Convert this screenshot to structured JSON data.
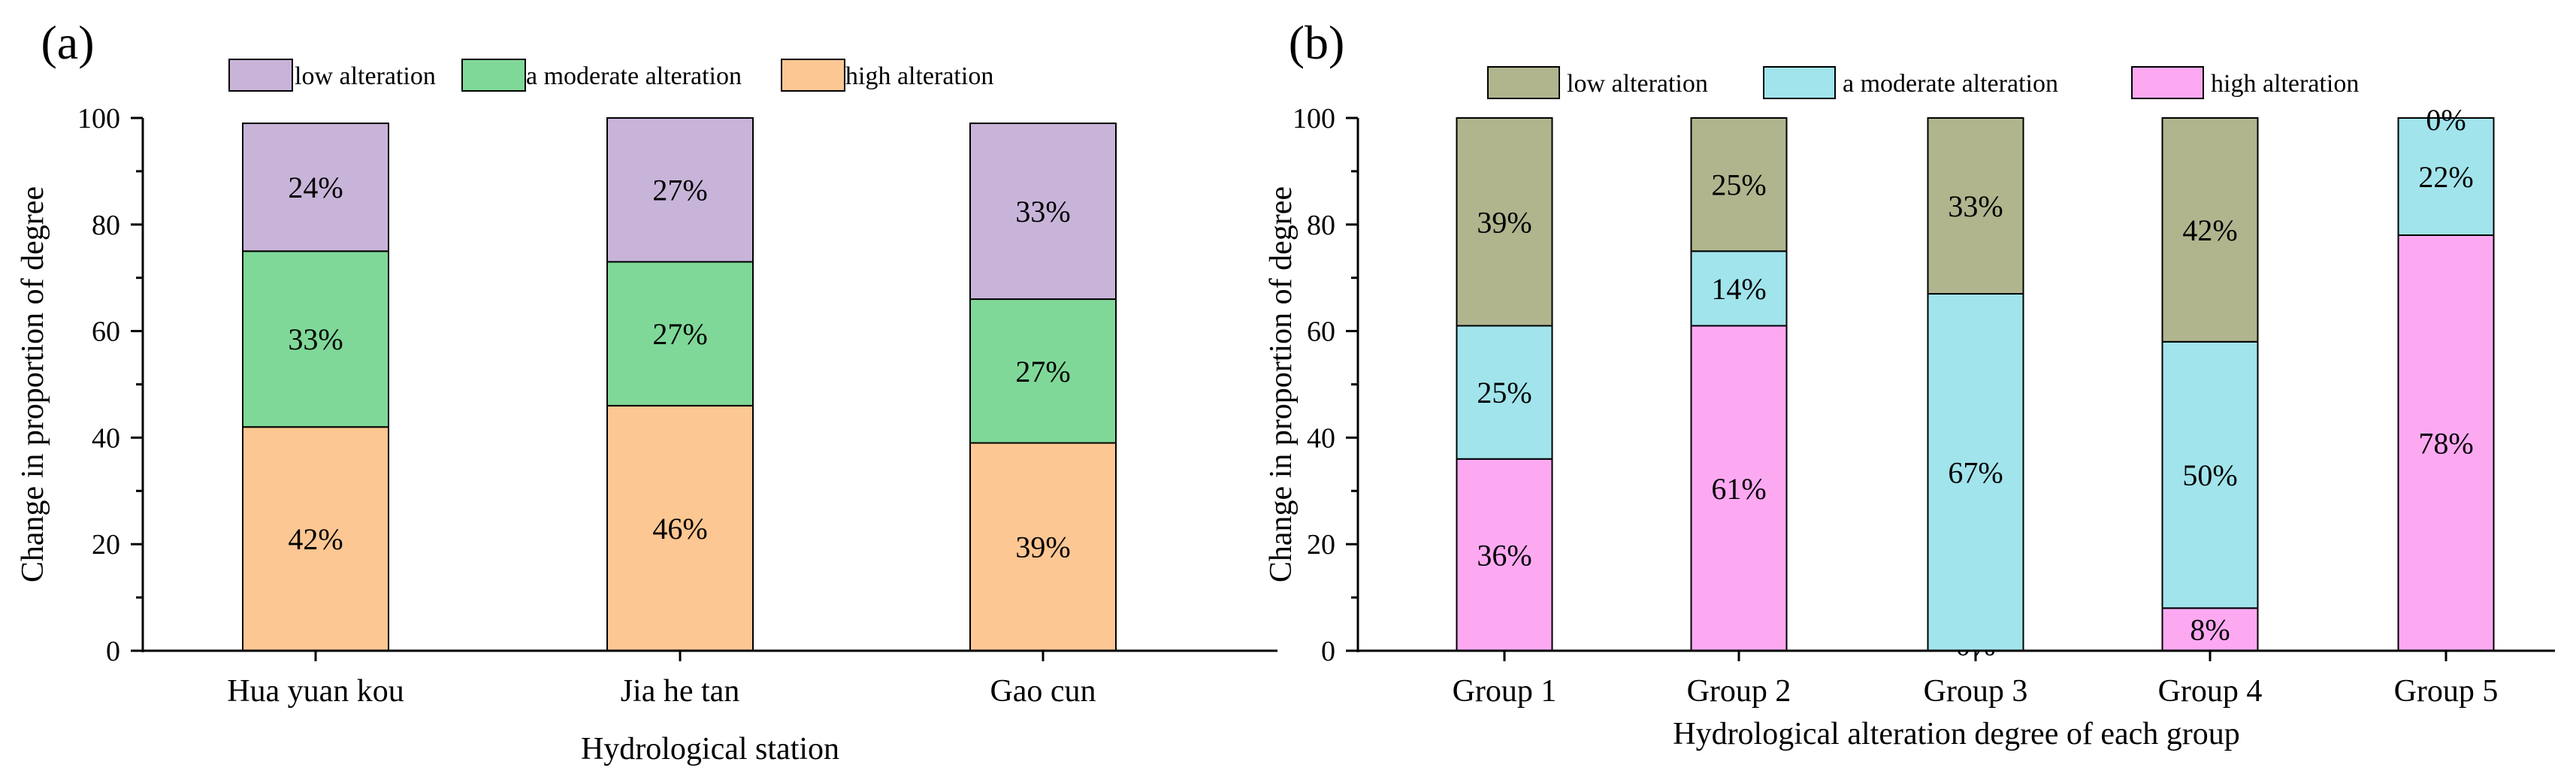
{
  "chart_data": [
    {
      "panel_label": "(a)",
      "type": "bar",
      "stacked": true,
      "title": "",
      "xlabel": "Hydrological station",
      "ylabel": "Change in proportion of degree",
      "ylim": [
        0,
        100
      ],
      "yticks": [
        "0",
        "20",
        "40",
        "60",
        "80",
        "100"
      ],
      "categories": [
        "Hua yuan kou",
        "Jia he tan",
        "Gao cun"
      ],
      "series": [
        {
          "name": "high alteration",
          "color": "#FDC793",
          "values": [
            42,
            46,
            39
          ],
          "labels": [
            "42%",
            "46%",
            "39%"
          ]
        },
        {
          "name": "a moderate alteration",
          "color": "#7FD898",
          "values": [
            33,
            27,
            27
          ],
          "labels": [
            "33%",
            "27%",
            "27%"
          ]
        },
        {
          "name": "low alteration",
          "color": "#C8B4D9",
          "values": [
            24,
            27,
            33
          ],
          "labels": [
            "24%",
            "27%",
            "33%"
          ]
        }
      ],
      "legend": {
        "placement": "top",
        "order": [
          "low alteration",
          "a moderate alteration",
          "high alteration"
        ]
      }
    },
    {
      "panel_label": "(b)",
      "type": "bar",
      "stacked": true,
      "title": "",
      "xlabel": "Hydrological alteration degree of each group",
      "ylabel": "Change in proportion of degree",
      "ylim": [
        0,
        100
      ],
      "yticks": [
        "0",
        "20",
        "40",
        "60",
        "80",
        "100"
      ],
      "categories": [
        "Group 1",
        "Group 2",
        "Group 3",
        "Group 4",
        "Group 5"
      ],
      "series": [
        {
          "name": "high alteration",
          "color": "#FDA9F2",
          "values": [
            36,
            61,
            0,
            8,
            78
          ],
          "labels": [
            "36%",
            "61%",
            "0%",
            "8%",
            "78%"
          ]
        },
        {
          "name": "a moderate alteration",
          "color": "#A1E4EC",
          "values": [
            25,
            14,
            67,
            50,
            22
          ],
          "labels": [
            "25%",
            "14%",
            "67%",
            "50%",
            "22%"
          ]
        },
        {
          "name": "low alteration",
          "color": "#B0B58E",
          "values": [
            39,
            25,
            33,
            42,
            0
          ],
          "labels": [
            "39%",
            "25%",
            "33%",
            "42%",
            "0%"
          ]
        }
      ],
      "legend": {
        "placement": "top",
        "order": [
          "low alteration",
          "a moderate alteration",
          "high alteration"
        ]
      }
    }
  ]
}
